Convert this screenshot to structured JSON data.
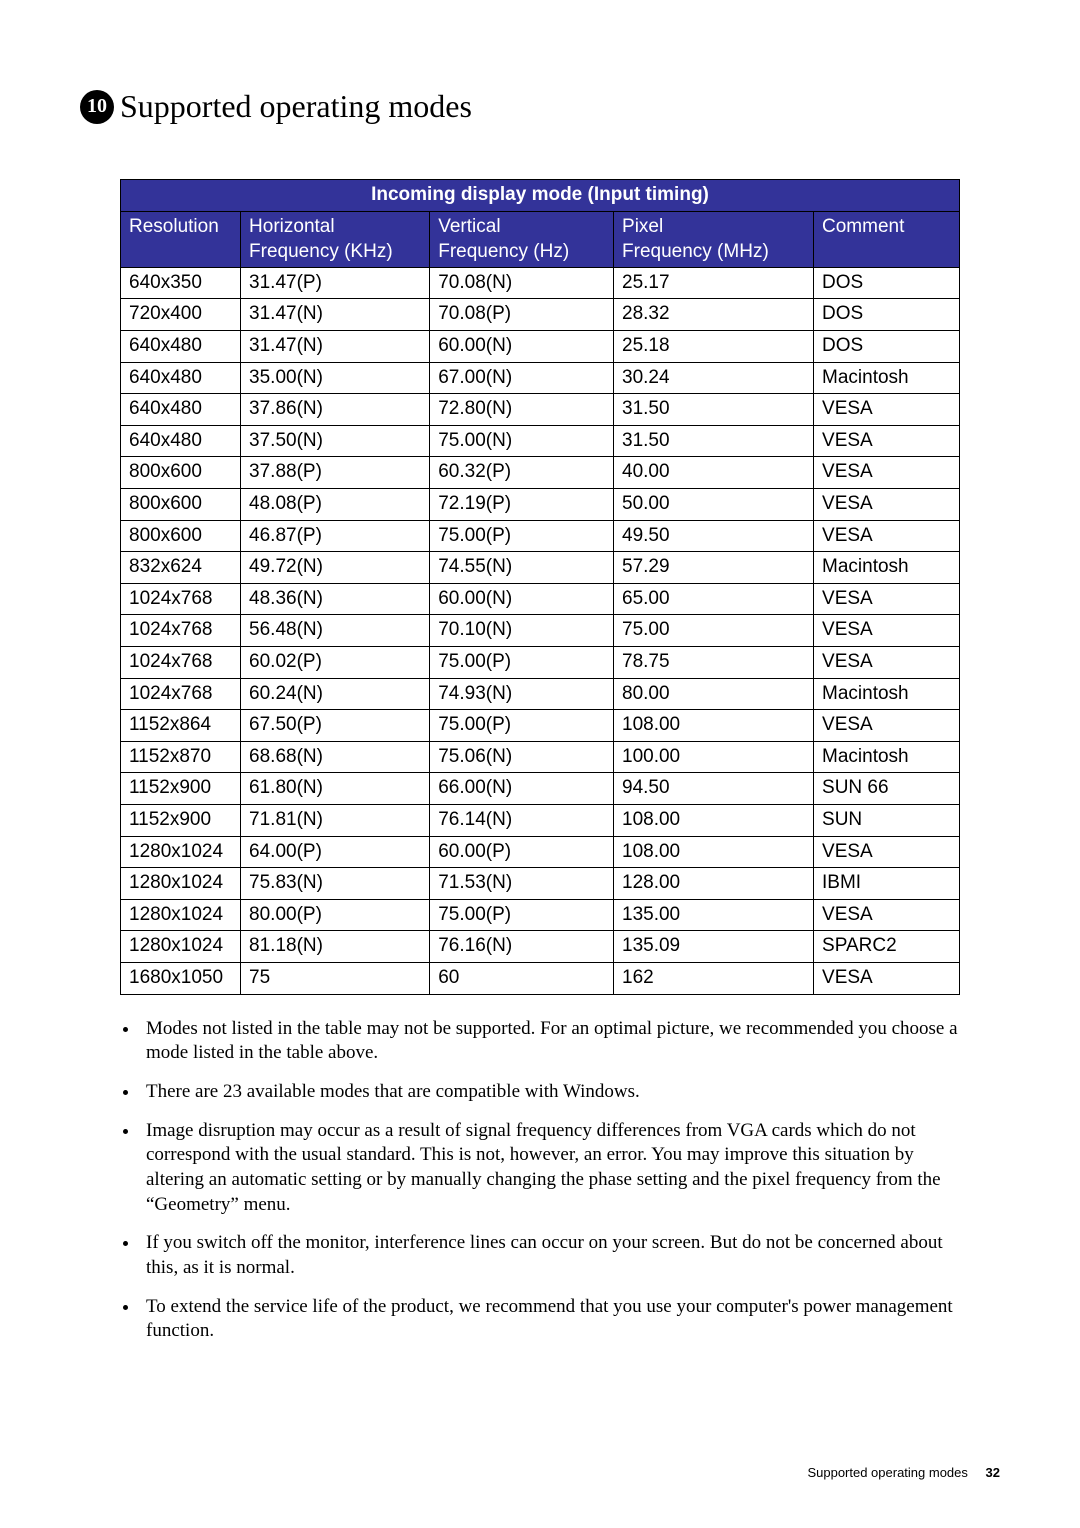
{
  "chapter": {
    "number": "10",
    "title": "Supported operating modes"
  },
  "table": {
    "title": "Incoming display mode (Input timing)",
    "columns": [
      {
        "line1": "Resolution",
        "line2": ""
      },
      {
        "line1": "Horizontal",
        "line2": "Frequency (KHz)"
      },
      {
        "line1": "Vertical",
        "line2": "Frequency (Hz)"
      },
      {
        "line1": "Pixel",
        "line2": "Frequency (MHz)"
      },
      {
        "line1": "Comment",
        "line2": ""
      }
    ],
    "rows": [
      [
        "640x350",
        "31.47(P)",
        "70.08(N)",
        "25.17",
        "DOS"
      ],
      [
        "720x400",
        "31.47(N)",
        "70.08(P)",
        "28.32",
        "DOS"
      ],
      [
        "640x480",
        "31.47(N)",
        "60.00(N)",
        "25.18",
        "DOS"
      ],
      [
        "640x480",
        "35.00(N)",
        "67.00(N)",
        "30.24",
        "Macintosh"
      ],
      [
        "640x480",
        "37.86(N)",
        "72.80(N)",
        "31.50",
        "VESA"
      ],
      [
        "640x480",
        "37.50(N)",
        "75.00(N)",
        "31.50",
        "VESA"
      ],
      [
        "800x600",
        "37.88(P)",
        "60.32(P)",
        "40.00",
        "VESA"
      ],
      [
        "800x600",
        "48.08(P)",
        "72.19(P)",
        "50.00",
        "VESA"
      ],
      [
        "800x600",
        "46.87(P)",
        "75.00(P)",
        "49.50",
        "VESA"
      ],
      [
        "832x624",
        "49.72(N)",
        "74.55(N)",
        "57.29",
        "Macintosh"
      ],
      [
        "1024x768",
        "48.36(N)",
        "60.00(N)",
        "65.00",
        "VESA"
      ],
      [
        "1024x768",
        "56.48(N)",
        "70.10(N)",
        "75.00",
        "VESA"
      ],
      [
        "1024x768",
        "60.02(P)",
        "75.00(P)",
        "78.75",
        "VESA"
      ],
      [
        "1024x768",
        "60.24(N)",
        "74.93(N)",
        "80.00",
        "Macintosh"
      ],
      [
        "1152x864",
        "67.50(P)",
        "75.00(P)",
        "108.00",
        "VESA"
      ],
      [
        "1152x870",
        "68.68(N)",
        "75.06(N)",
        "100.00",
        "Macintosh"
      ],
      [
        "1152x900",
        "61.80(N)",
        "66.00(N)",
        "94.50",
        "SUN 66"
      ],
      [
        "1152x900",
        "71.81(N)",
        "76.14(N)",
        "108.00",
        "SUN"
      ],
      [
        "1280x1024",
        "64.00(P)",
        "60.00(P)",
        "108.00",
        "VESA"
      ],
      [
        "1280x1024",
        "75.83(N)",
        "71.53(N)",
        "128.00",
        "IBMI"
      ],
      [
        "1280x1024",
        "80.00(P)",
        "75.00(P)",
        "135.00",
        "VESA"
      ],
      [
        "1280x1024",
        "81.18(N)",
        "76.16(N)",
        "135.09",
        "SPARC2"
      ],
      [
        "1680x1050",
        "75",
        "60",
        "162",
        "VESA"
      ]
    ]
  },
  "notes": [
    "Modes not listed in the table may not be supported. For an optimal picture, we recommended you choose a mode listed in the table above.",
    "There are 23 available modes that are compatible with Windows.",
    "Image disruption may occur as a result of signal frequency differences from VGA cards which do not correspond with the usual standard. This is not, however, an error. You may improve this situation by altering an automatic setting or by manually changing the phase setting and the pixel frequency from the “Geometry” menu.",
    "If you switch off the monitor, interference lines can occur on your screen. But do not be concerned about this, as it is normal.",
    "To extend the service life of the product, we recommend that you use your computer's power management function."
  ],
  "footer": {
    "label": "Supported operating modes",
    "page": "32"
  }
}
